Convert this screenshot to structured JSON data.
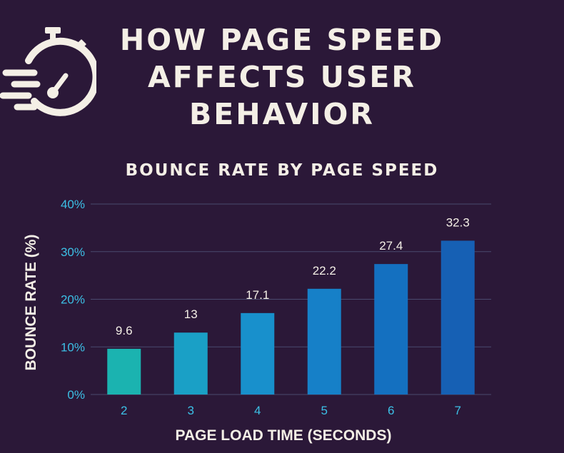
{
  "header": {
    "icon": "stopwatch-speed-icon",
    "title_lines": [
      "HOW PAGE SPEED",
      "AFFECTS USER",
      "BEHAVIOR"
    ]
  },
  "colors": {
    "background": "#2b1838",
    "title_text": "#f4efe6",
    "axis_tick_text": "#3cc0e6",
    "gridline": "#4a4a6e",
    "bar_gradient": [
      "#1bb3b0",
      "#1aa0c6",
      "#1890cc",
      "#1680c8",
      "#1470c0",
      "#1660b4"
    ]
  },
  "chart_data": {
    "type": "bar",
    "title": "BOUNCE RATE BY PAGE SPEED",
    "xlabel": "PAGE LOAD TIME (SECONDS)",
    "ylabel": "BOUNCE RATE (%)",
    "categories": [
      "2",
      "3",
      "4",
      "5",
      "6",
      "7"
    ],
    "values": [
      9.6,
      13,
      17.1,
      22.2,
      27.4,
      32.3
    ],
    "value_labels": [
      "9.6",
      "13",
      "17.1",
      "22.2",
      "27.4",
      "32.3"
    ],
    "ylim": [
      0,
      40
    ],
    "y_ticks": [
      "0%",
      "10%",
      "20%",
      "30%",
      "40%"
    ],
    "y_tick_values": [
      0,
      10,
      20,
      30,
      40
    ],
    "grid": true,
    "legend": "none"
  }
}
